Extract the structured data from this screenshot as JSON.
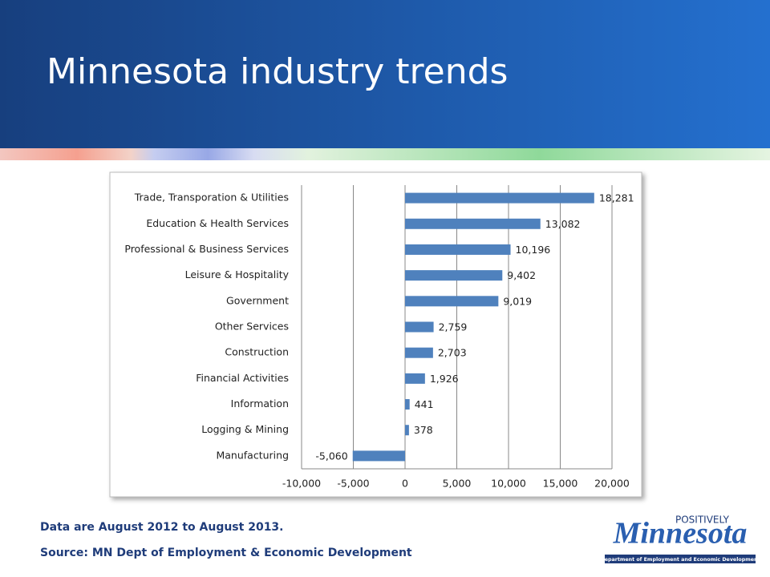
{
  "slide": {
    "title": "Minnesota industry trends",
    "notes": [
      "Data are August 2012 to August 2013.",
      "Source: MN Dept of Employment & Economic Development"
    ],
    "logo": {
      "tagline": "POSITIVELY",
      "name": "Minnesota",
      "department": "Department of Employment and Economic Development"
    }
  },
  "chart_data": {
    "type": "bar",
    "categories": [
      "Trade, Transporation & Utilities",
      "Education & Health Services",
      "Professional & Business Services",
      "Leisure & Hospitality",
      "Government",
      "Other Services",
      "Construction",
      "Financial Activities",
      "Information",
      "Logging & Mining",
      "Manufacturing"
    ],
    "values": [
      18281,
      13082,
      10196,
      9402,
      9019,
      2759,
      2703,
      1926,
      441,
      378,
      -5060
    ],
    "value_labels": [
      "18,281",
      "13,082",
      "10,196",
      "9,402",
      "9,019",
      "2,759",
      "2,703",
      "1,926",
      "441",
      "378",
      "-5,060"
    ],
    "color": "#4f81bd",
    "xlim": [
      -10000,
      20000
    ],
    "xticks": [
      {
        "value": -10000,
        "label": "-10,000"
      },
      {
        "value": -5000,
        "label": "-5,000"
      },
      0,
      {
        "value": 5000,
        "label": "5,000"
      },
      {
        "value": 10000,
        "label": "10,000"
      },
      {
        "value": 15000,
        "label": "15,000"
      },
      {
        "value": 20000,
        "label": "20,000"
      }
    ],
    "grid": true
  }
}
